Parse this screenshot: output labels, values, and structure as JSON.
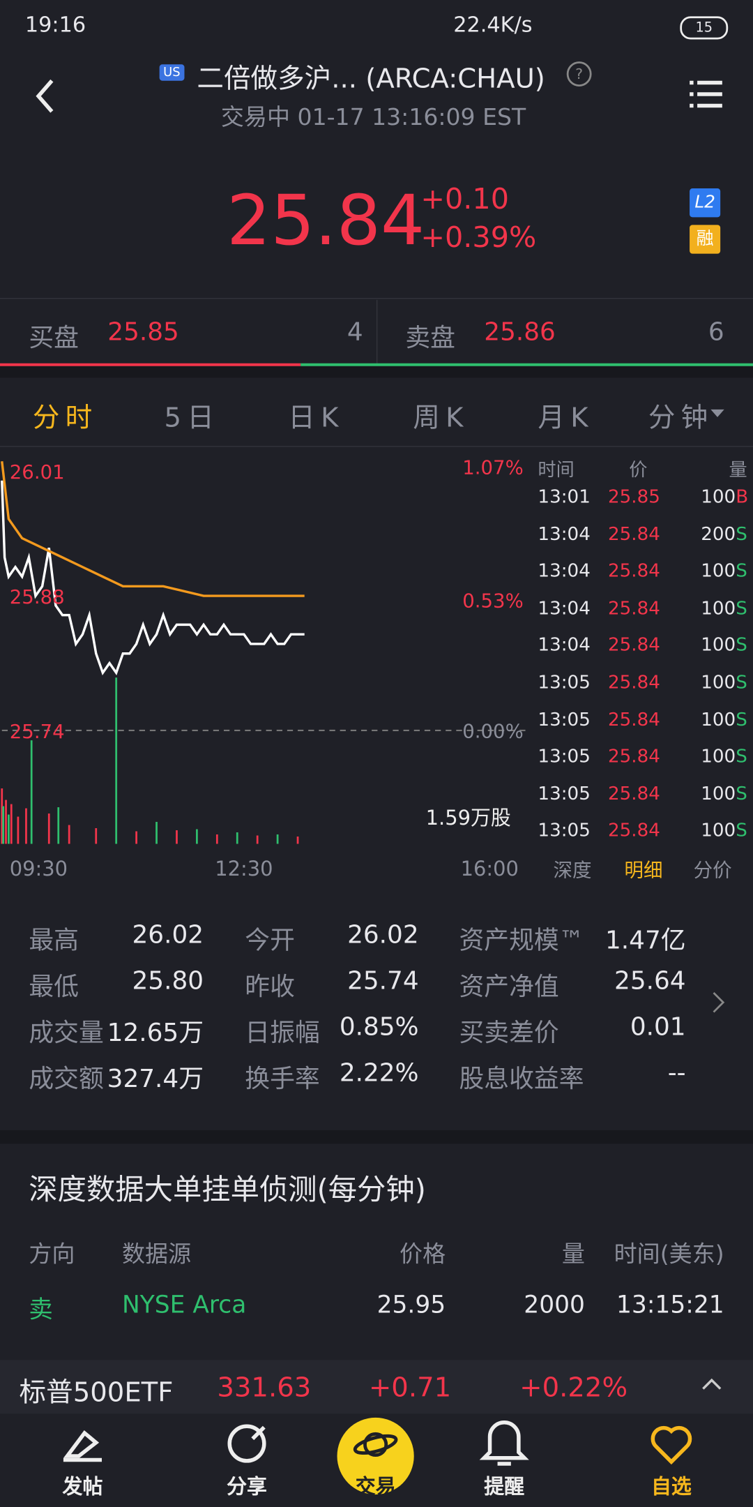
{
  "status": {
    "time": "19:16",
    "speed": "22.4K/s",
    "battery": "15"
  },
  "header": {
    "market": "US",
    "title": "二倍做多沪... (ARCA:CHAU)",
    "subtitle": "交易中 01-17 13:16:09 EST"
  },
  "quote": {
    "price": "25.84",
    "change": "+0.10",
    "change_pct": "+0.39%",
    "badges": [
      "L2",
      "融"
    ]
  },
  "order_book": {
    "bid_label": "买盘",
    "bid_price": "25.85",
    "bid_size": "4",
    "ask_label": "卖盘",
    "ask_price": "25.86",
    "ask_size": "6"
  },
  "tabs": [
    "分时",
    "5日",
    "日K",
    "周K",
    "月K",
    "分钟"
  ],
  "chart_data": {
    "type": "line",
    "series": [
      {
        "color": "#ffffff",
        "x": [
          "09:30",
          "09:32",
          "09:35",
          "09:40",
          "09:45",
          "09:50",
          "09:55",
          "10:00",
          "10:05",
          "10:10",
          "10:15",
          "10:20",
          "10:25",
          "10:30",
          "10:35",
          "10:40",
          "10:45",
          "10:50",
          "10:55",
          "11:00",
          "11:05",
          "11:10",
          "11:15",
          "11:20",
          "11:25",
          "11:30",
          "11:35",
          "11:40",
          "11:45",
          "11:50",
          "11:55",
          "12:00",
          "12:05",
          "12:10",
          "12:15",
          "12:20",
          "12:25",
          "12:30",
          "12:35",
          "12:40",
          "12:45",
          "12:50",
          "12:55",
          "13:00",
          "13:05",
          "13:10",
          "13:15"
        ],
        "values": [
          26.0,
          25.92,
          25.9,
          25.91,
          25.9,
          25.92,
          25.88,
          25.89,
          25.93,
          25.87,
          25.86,
          25.86,
          25.83,
          25.84,
          25.86,
          25.82,
          25.8,
          25.81,
          25.8,
          25.82,
          25.82,
          25.83,
          25.85,
          25.83,
          25.84,
          25.86,
          25.84,
          25.85,
          25.85,
          25.85,
          25.84,
          25.85,
          25.84,
          25.84,
          25.85,
          25.84,
          25.84,
          25.84,
          25.83,
          25.83,
          25.83,
          25.84,
          25.83,
          25.83,
          25.84,
          25.84,
          25.84
        ]
      },
      {
        "color": "#f39a1e",
        "x": [
          "09:30",
          "09:35",
          "09:45",
          "10:00",
          "10:15",
          "10:30",
          "10:45",
          "11:00",
          "11:30",
          "12:00",
          "12:30",
          "13:15"
        ],
        "values": [
          26.02,
          25.96,
          25.94,
          25.93,
          25.92,
          25.91,
          25.9,
          25.89,
          25.89,
          25.88,
          25.88,
          25.88
        ]
      }
    ],
    "volume": [
      {
        "color": "#f2354b",
        "x": [
          "09:30",
          "09:33",
          "09:37",
          "09:42",
          "09:48",
          "10:05",
          "10:20",
          "10:40",
          "11:10",
          "11:40",
          "12:10",
          "12:40",
          "13:10"
        ],
        "values": [
          5300,
          4200,
          3800,
          2600,
          3400,
          2900,
          1800,
          1500,
          1200,
          1300,
          900,
          800,
          700
        ]
      },
      {
        "color": "#2fbf6e",
        "x": [
          "09:31",
          "09:35",
          "09:52",
          "10:12",
          "10:55",
          "11:25",
          "11:55",
          "12:25",
          "12:55"
        ],
        "values": [
          3600,
          2800,
          9900,
          3500,
          15900,
          2100,
          1400,
          1100,
          900
        ]
      }
    ],
    "xlim": [
      "09:30",
      "16:00"
    ],
    "xticks": [
      "09:30",
      "12:30",
      "16:00"
    ],
    "ylim": [
      25.73,
      26.03
    ],
    "yticks": [
      26.01,
      25.88,
      25.74
    ],
    "y2lim": [
      -0.04,
      1.13
    ],
    "y2ticks": [
      {
        "value": 1.07,
        "label": "1.07%"
      },
      {
        "value": 0.53,
        "label": "0.53%"
      },
      {
        "value": 0,
        "label": "0.00%"
      }
    ],
    "reference_line": 25.74,
    "vlim": [
      0,
      15900
    ],
    "vticks": [
      {
        "value": 15900,
        "label": "1.59万股"
      }
    ]
  },
  "trades": {
    "headers": [
      "时间",
      "价",
      "量"
    ],
    "rows": [
      [
        "13:01",
        "25.85",
        "100",
        "B"
      ],
      [
        "13:04",
        "25.84",
        "200",
        "S"
      ],
      [
        "13:04",
        "25.84",
        "100",
        "S"
      ],
      [
        "13:04",
        "25.84",
        "100",
        "S"
      ],
      [
        "13:04",
        "25.84",
        "100",
        "S"
      ],
      [
        "13:05",
        "25.84",
        "100",
        "S"
      ],
      [
        "13:05",
        "25.84",
        "100",
        "S"
      ],
      [
        "13:05",
        "25.84",
        "100",
        "S"
      ],
      [
        "13:05",
        "25.84",
        "100",
        "S"
      ],
      [
        "13:05",
        "25.84",
        "100",
        "S"
      ]
    ],
    "tabs": [
      "深度",
      "明细",
      "分价"
    ]
  },
  "stats": [
    [
      [
        "最高",
        "26.02"
      ],
      [
        "今开",
        "26.02"
      ],
      [
        "资产规模™",
        "1.47亿"
      ]
    ],
    [
      [
        "最低",
        "25.80"
      ],
      [
        "昨收",
        "25.74"
      ],
      [
        "资产净值",
        "25.64"
      ]
    ],
    [
      [
        "成交量",
        "12.65万"
      ],
      [
        "日振幅",
        "0.85%"
      ],
      [
        "买卖差价",
        "0.01"
      ]
    ],
    [
      [
        "成交额",
        "327.4万"
      ],
      [
        "换手率",
        "2.22%"
      ],
      [
        "股息收益率",
        "--"
      ]
    ]
  ],
  "depth": {
    "title": "深度数据大单挂单侦测(每分钟)",
    "headers": [
      "方向",
      "数据源",
      "价格",
      "量",
      "时间(美东)"
    ],
    "rows": [
      [
        "卖",
        "NYSE Arca",
        "25.95",
        "2000",
        "13:15:21"
      ]
    ]
  },
  "index_bar": {
    "name": "标普500ETF",
    "price": "331.63",
    "change": "+0.71",
    "change_pct": "+0.22%"
  },
  "nav": [
    "发帖",
    "分享",
    "交易",
    "提醒",
    "自选"
  ]
}
